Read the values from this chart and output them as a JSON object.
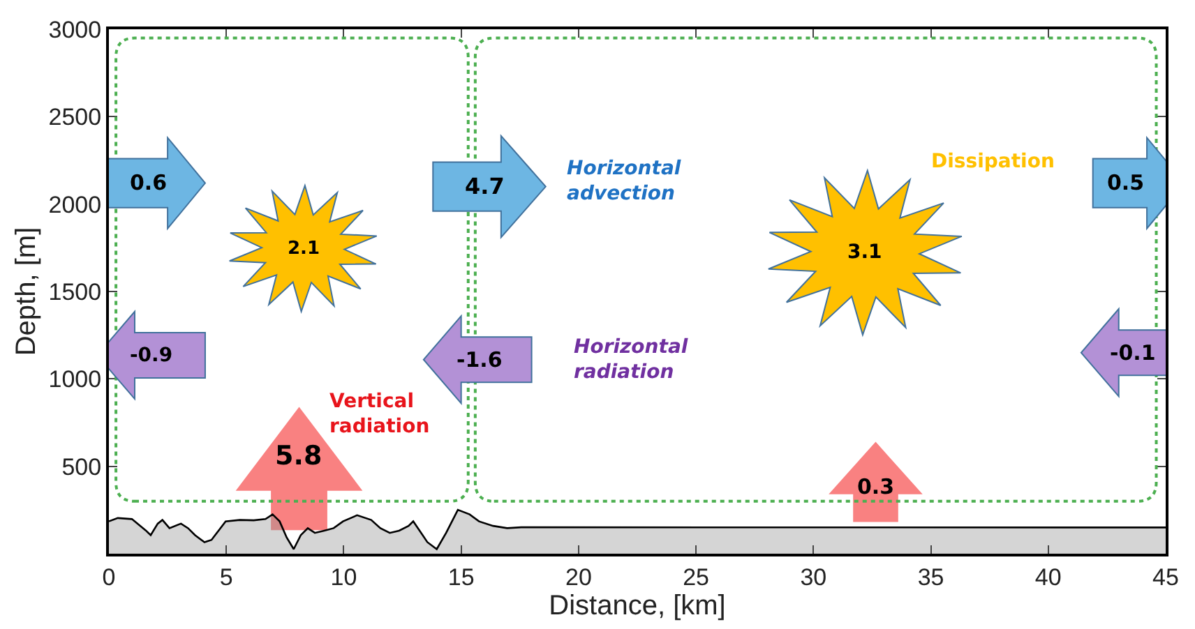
{
  "chart_data": {
    "type": "area",
    "xlabel": "Distance, [km]",
    "ylabel": "Depth, [m]",
    "x": [
      0,
      0.38,
      0.98,
      1.58,
      1.78,
      2.08,
      2.28,
      2.58,
      3.07,
      3.37,
      3.67,
      4.07,
      4.37,
      4.67,
      4.97,
      5.57,
      6.17,
      6.67,
      6.97,
      7.27,
      7.57,
      7.87,
      8.17,
      8.47,
      8.77,
      9.17,
      9.57,
      9.97,
      10.57,
      11.17,
      11.56,
      11.96,
      12.36,
      12.76,
      12.96,
      13.16,
      13.56,
      13.96,
      14.36,
      14.86,
      15.36,
      15.76,
      16.36,
      16.96,
      17.56,
      45
    ],
    "series": [
      {
        "color": "#000000",
        "values": [
          185,
          204,
          198,
          132,
          106,
          172,
          193,
          146,
          172,
          146,
          106,
          66,
          79,
          132,
          185,
          193,
          191,
          198,
          225,
          185,
          93,
          26,
          106,
          146,
          119,
          132,
          146,
          185,
          220,
          193,
          146,
          119,
          132,
          159,
          185,
          146,
          66,
          26,
          119,
          251,
          225,
          185,
          159,
          146,
          151,
          150
        ]
      }
    ],
    "xlim": [
      0,
      45
    ],
    "ylim": [
      0,
      3000
    ],
    "xticks": [
      0,
      5,
      10,
      15,
      20,
      25,
      30,
      35,
      40,
      45
    ],
    "yticks": [
      {
        "value": 0,
        "label": null
      },
      500,
      1000,
      1500,
      2000,
      2500,
      3000
    ],
    "grid": false,
    "annotations": [
      "0.6",
      "2.1",
      "-0.9",
      "4.7",
      "-1.6",
      "5.8",
      "Horizontal\nadvection",
      "Horizontal\nradiation",
      "Vertical\nradiation",
      "Dissipation",
      "3.1",
      "0.5",
      "-0.1",
      "0.3"
    ]
  }
}
